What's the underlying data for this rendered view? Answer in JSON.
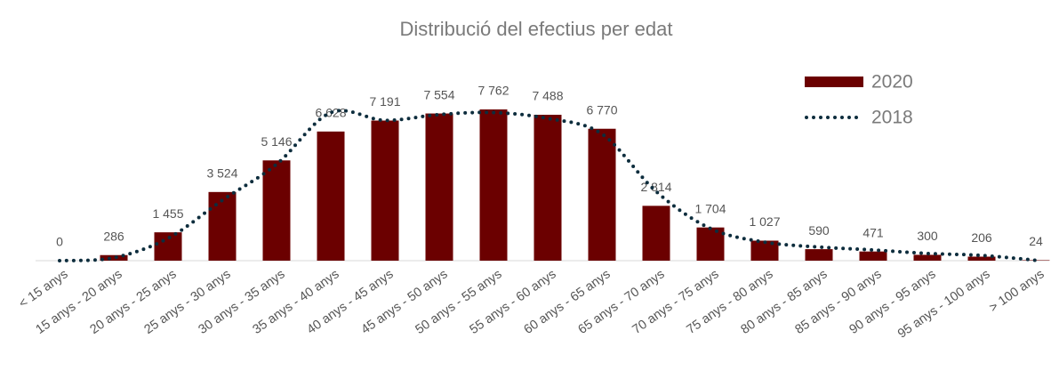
{
  "chart_data": {
    "type": "bar",
    "title": "Distribució del efectius per edat",
    "categories": [
      "< 15 anys",
      "15 anys - 20 anys",
      "20 anys - 25 anys",
      "25 anys - 30 anys",
      "30 anys - 35 anys",
      "35 anys - 40 anys",
      "40 anys - 45 anys",
      "45 anys - 50 anys",
      "50 anys - 55 anys",
      "55 anys - 60 anys",
      "60 anys - 65 anys",
      "65 anys - 70 anys",
      "70 anys - 75 anys",
      "75 anys - 80 anys",
      "80 anys - 85 anys",
      "85 anys - 90 anys",
      "90 anys - 95 anys",
      "95 anys - 100 anys",
      "> 100 anys"
    ],
    "series": [
      {
        "name": "2020",
        "type": "bar",
        "color": "#6b0000",
        "values": [
          0,
          286,
          1455,
          3524,
          5146,
          6628,
          7191,
          7554,
          7762,
          7488,
          6770,
          2814,
          1704,
          1027,
          590,
          471,
          300,
          206,
          24
        ],
        "value_labels": [
          "0",
          "286",
          "1 455",
          "3 524",
          "5 146",
          "6 628",
          "7 191",
          "7 554",
          "7 762",
          "7 488",
          "6 770",
          "2 814",
          "1 704",
          "1 027",
          "590",
          "471",
          "300",
          "206",
          "24"
        ]
      },
      {
        "name": "2018",
        "type": "line",
        "color": "#0d2d3d",
        "values": [
          0,
          150,
          1150,
          3100,
          4950,
          7600,
          7200,
          7500,
          7600,
          7300,
          6500,
          3550,
          1650,
          950,
          700,
          550,
          370,
          270,
          20
        ]
      }
    ],
    "legend": "top-right"
  }
}
